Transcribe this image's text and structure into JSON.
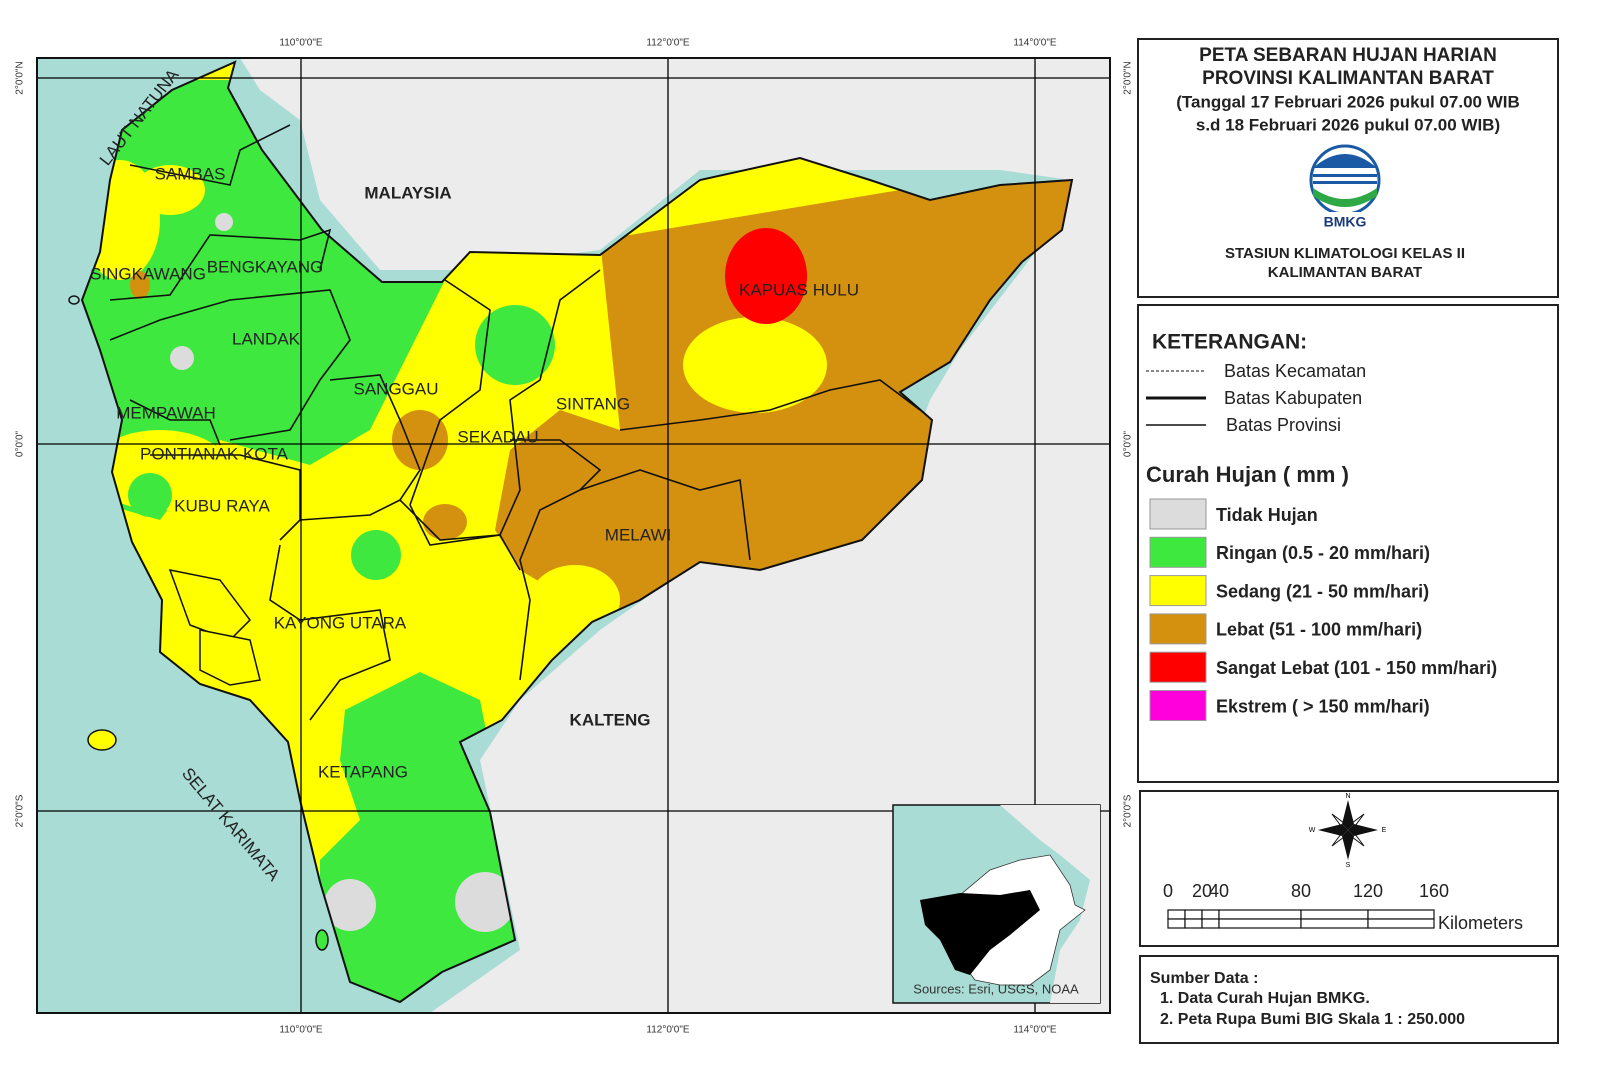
{
  "map": {
    "coord_labels": {
      "top": [
        "110°0'0\"E",
        "112°0'0\"E",
        "114°0'0\"E"
      ],
      "bottom": [
        "110°0'0\"E",
        "112°0'0\"E",
        "114°0'0\"E"
      ],
      "left": [
        "2°0'0\"N",
        "0°0'0\"",
        "2°0'0\"S"
      ],
      "right": [
        "2°0'0\"N",
        "0°0'0\"",
        "2°0'0\"S"
      ]
    },
    "place_labels": [
      "SAMBAS",
      "SINGKAWANG",
      "BENGKAYANG",
      "LANDAK",
      "MEMPAWAH",
      "SANGGAU",
      "SINTANG",
      "SEKADAU",
      "PONTIANAK KOTA",
      "KUBU RAYA",
      "MELAWI",
      "KAPUAS HULU",
      "KAYONG UTARA",
      "KETAPANG"
    ],
    "region_labels": [
      "MALAYSIA",
      "KALTENG"
    ],
    "sea_labels": [
      "LAUT NATUNA",
      "SELAT KARIMATA"
    ],
    "inset_credit": "Sources: Esri, USGS, NOAA"
  },
  "title_panel": {
    "lines": [
      "PETA SEBARAN HUJAN HARIAN",
      "PROVINSI KALIMANTAN BARAT",
      "(Tanggal 17 Februari 2026 pukul 07.00 WIB",
      "s.d 18 Februari 2026 pukul 07.00 WIB)"
    ],
    "logo_text": "BMKG",
    "station": [
      "STASIUN KLIMATOLOGI KELAS II",
      "KALIMANTAN BARAT"
    ]
  },
  "legend": {
    "heading": "KETERANGAN:",
    "lines": [
      "Batas Kecamatan",
      "Batas Kabupaten",
      "Batas Provinsi"
    ],
    "rain_heading": "Curah Hujan ( mm )",
    "classes": [
      {
        "label": "Tidak Hujan",
        "color": "#dcdcdc"
      },
      {
        "label": "Ringan (0.5 - 20 mm/hari)",
        "color": "#3ee83e"
      },
      {
        "label": "Sedang (21 - 50 mm/hari)",
        "color": "#ffff00"
      },
      {
        "label": "Lebat (51 - 100 mm/hari)",
        "color": "#d4910f"
      },
      {
        "label": "Sangat Lebat (101 - 150 mm/hari)",
        "color": "#ff0000"
      },
      {
        "label": "Ekstrem ( > 150 mm/hari)",
        "color": "#ff00dd"
      }
    ]
  },
  "scale": {
    "ticks": [
      "0",
      "20",
      "40",
      "80",
      "120",
      "160"
    ],
    "unit": "Kilometers",
    "compass": [
      "N",
      "S",
      "W",
      "E"
    ]
  },
  "source": {
    "heading": "Sumber Data :",
    "items": [
      "1. Data Curah Hujan BMKG.",
      "2. Peta Rupa Bumi BIG Skala 1 : 250.000"
    ]
  }
}
